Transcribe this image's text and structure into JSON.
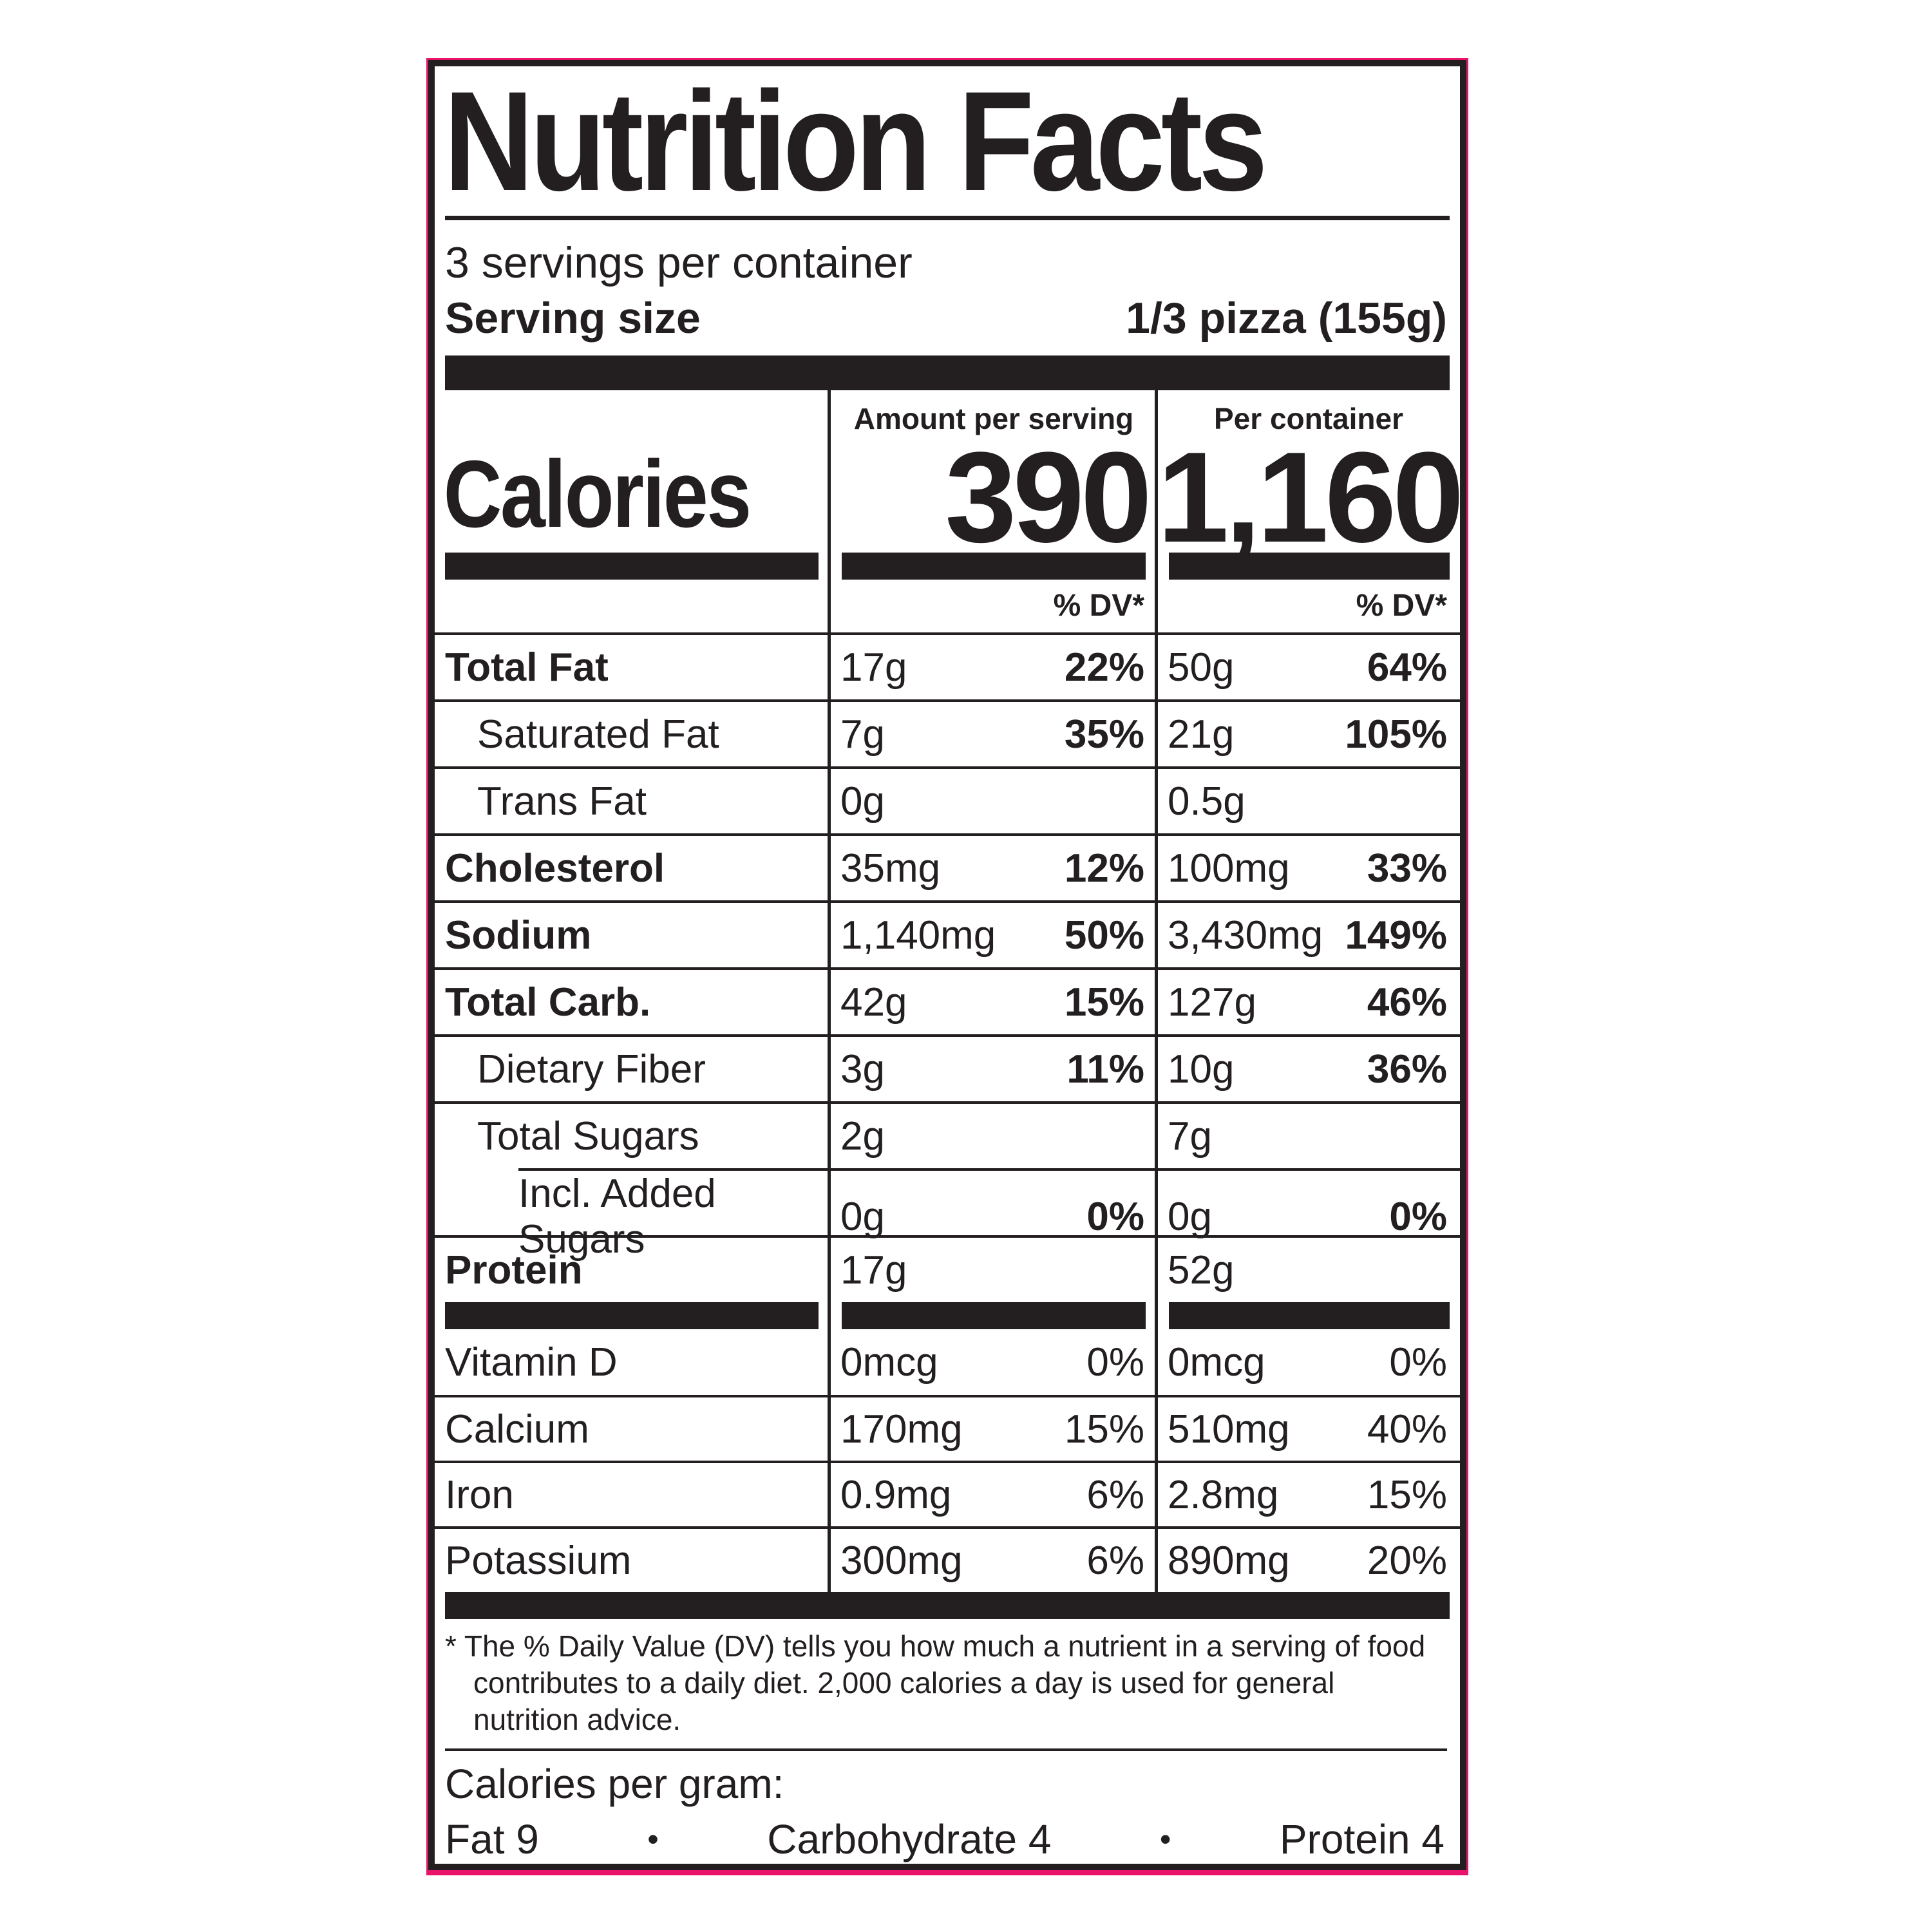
{
  "label": {
    "title": "Nutrition Facts",
    "servings_per_container": "3 servings per container",
    "serving_size_label": "Serving size",
    "serving_size_value": "1/3 pizza (155g)",
    "calories": {
      "label": "Calories",
      "col_serving_header": "Amount per serving",
      "col_container_header": "Per container",
      "per_serving": "390",
      "per_container": "1,160"
    },
    "dv_header": "% DV*",
    "rows": [
      {
        "name": "Total Fat",
        "s_amt": "17g",
        "s_dv": "22%",
        "c_amt": "50g",
        "c_dv": "64%"
      },
      {
        "name": "Saturated Fat",
        "s_amt": "7g",
        "s_dv": "35%",
        "c_amt": "21g",
        "c_dv": "105%"
      },
      {
        "name": "Trans Fat",
        "s_amt": "0g",
        "s_dv": "",
        "c_amt": "0.5g",
        "c_dv": ""
      },
      {
        "name": "Cholesterol",
        "s_amt": "35mg",
        "s_dv": "12%",
        "c_amt": "100mg",
        "c_dv": "33%"
      },
      {
        "name": "Sodium",
        "s_amt": "1,140mg",
        "s_dv": "50%",
        "c_amt": "3,430mg",
        "c_dv": "149%"
      },
      {
        "name": "Total Carb.",
        "s_amt": "42g",
        "s_dv": "15%",
        "c_amt": "127g",
        "c_dv": "46%"
      },
      {
        "name": "Dietary Fiber",
        "s_amt": "3g",
        "s_dv": "11%",
        "c_amt": "10g",
        "c_dv": "36%"
      },
      {
        "name": "Total Sugars",
        "s_amt": "2g",
        "s_dv": "",
        "c_amt": "7g",
        "c_dv": ""
      },
      {
        "name": "Incl. Added Sugars",
        "s_amt": "0g",
        "s_dv": "0%",
        "c_amt": "0g",
        "c_dv": "0%"
      },
      {
        "name": "Protein",
        "s_amt": "17g",
        "s_dv": "",
        "c_amt": "52g",
        "c_dv": ""
      }
    ],
    "vitamins": [
      {
        "name": "Vitamin D",
        "s_amt": "0mcg",
        "s_dv": "0%",
        "c_amt": "0mcg",
        "c_dv": "0%"
      },
      {
        "name": "Calcium",
        "s_amt": "170mg",
        "s_dv": "15%",
        "c_amt": "510mg",
        "c_dv": "40%"
      },
      {
        "name": "Iron",
        "s_amt": "0.9mg",
        "s_dv": "6%",
        "c_amt": "2.8mg",
        "c_dv": "15%"
      },
      {
        "name": "Potassium",
        "s_amt": "300mg",
        "s_dv": "6%",
        "c_amt": "890mg",
        "c_dv": "20%"
      }
    ],
    "footnote": "* The % Daily Value (DV) tells you how much a nutrient in a serving of food contributes to a daily diet. 2,000 calories a day is used for general nutrition advice.",
    "calories_per_gram": {
      "label": "Calories per gram:",
      "fat": "Fat 9",
      "carb": "Carbohydrate 4",
      "protein": "Protein 4",
      "bullet": "•"
    },
    "colors": {
      "ink": "#231f20",
      "accent_border": "#e9136b"
    }
  }
}
